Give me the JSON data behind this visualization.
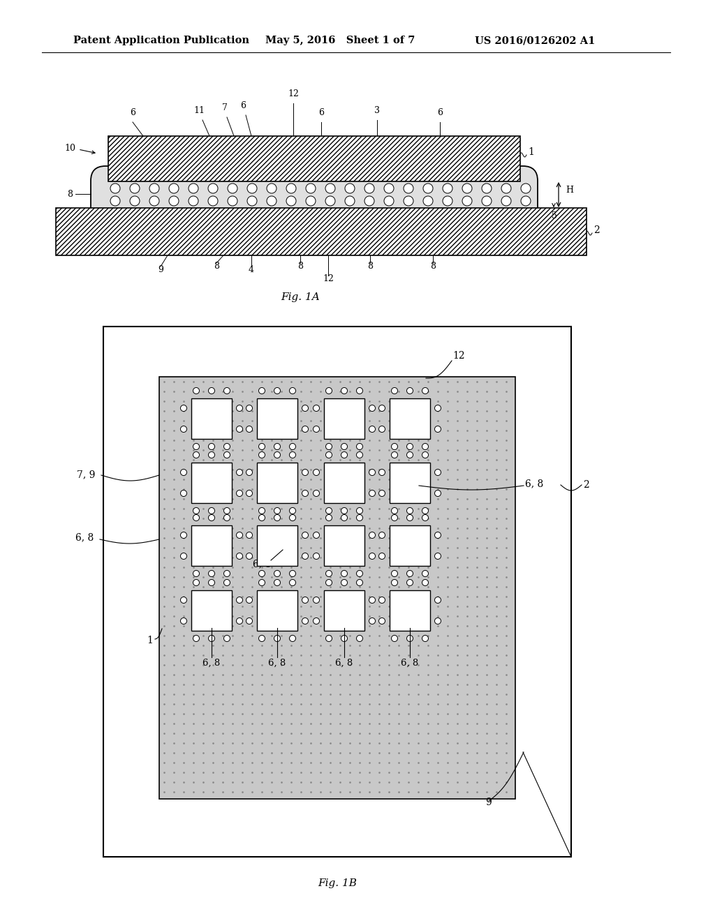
{
  "header_left": "Patent Application Publication",
  "header_mid": "May 5, 2016   Sheet 1 of 7",
  "header_right": "US 2016/0126202 A1",
  "fig1a_label": "Fig. 1A",
  "fig1b_label": "Fig. 1B",
  "bg_color": "#ffffff"
}
